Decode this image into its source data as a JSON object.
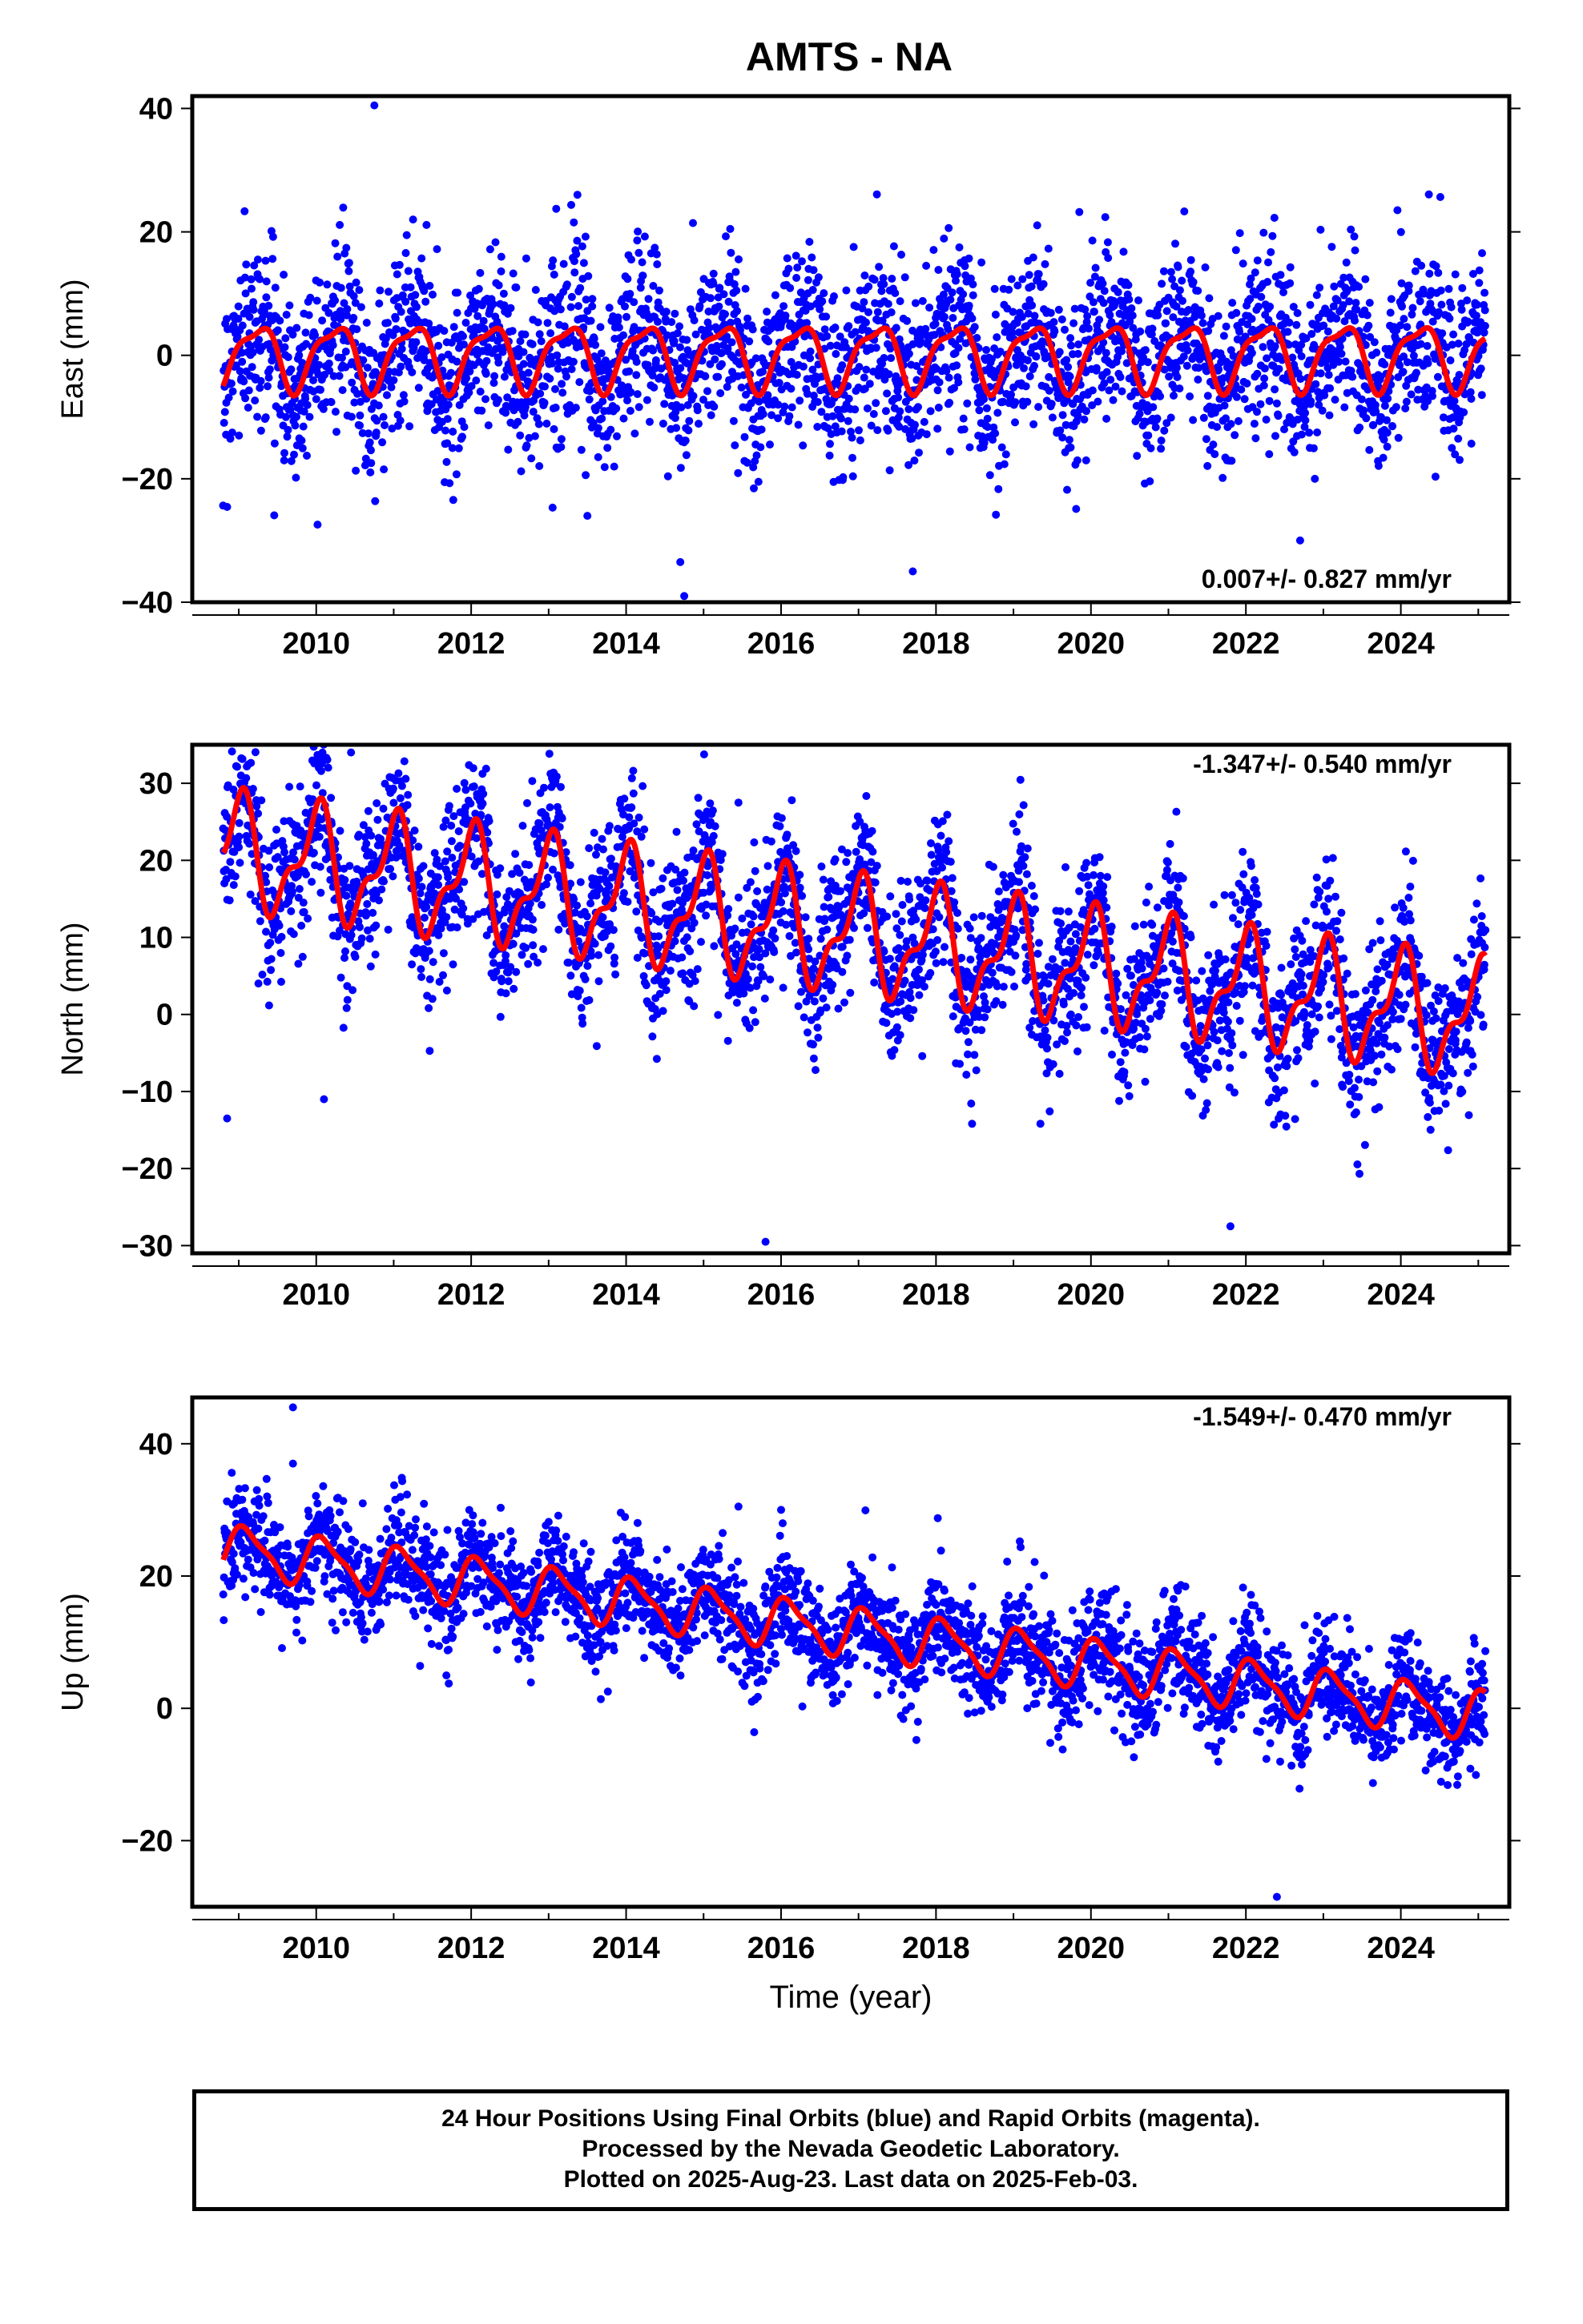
{
  "title": "AMTS - NA",
  "caption": [
    "24 Hour Positions Using Final Orbits (blue) and Rapid Orbits (magenta).",
    "Processed by the Nevada Geodetic Laboratory.",
    "Plotted on 2025-Aug-23. Last data on 2025-Feb-03."
  ],
  "colors": {
    "final_orbits": "#0000ff",
    "model_fit": "#ff0000",
    "frame": "#000000"
  },
  "chart_data": [
    {
      "type": "scatter",
      "ylabel": "East (mm)",
      "xlabel": "",
      "rate_label": "0.007+/- 0.827 mm/yr",
      "xlim": [
        2008.4,
        2025.4
      ],
      "ylim": [
        -40,
        42
      ],
      "xticks": [
        2010,
        2012,
        2014,
        2016,
        2018,
        2020,
        2022,
        2024
      ],
      "yticks": [
        -40,
        -20,
        0,
        20,
        40
      ],
      "grid": false,
      "data_range": [
        2008.8,
        2025.09
      ],
      "trend": {
        "intercept": 0.0,
        "slope": 0.007
      },
      "seasonal": {
        "annual_amp": 5.0,
        "annual_phase": 0.1,
        "semiannual_amp": 1.6,
        "semiannual_phase": 2.3
      },
      "scatter_sd": 7.0,
      "outliers": [
        [
          2010.75,
          40.5
        ],
        [
          2011.25,
          22.0
        ],
        [
          2014.75,
          -39.0
        ],
        [
          2014.7,
          -33.5
        ],
        [
          2022.7,
          -30.0
        ],
        [
          2013.5,
          -26.0
        ],
        [
          2017.7,
          -35.0
        ]
      ],
      "series": [
        {
          "name": "Final Orbits (blue)",
          "kind": "points",
          "color": "#0000ff"
        },
        {
          "name": "Rapid Orbits (magenta)",
          "kind": "points",
          "color": "#ff00ff"
        },
        {
          "name": "model",
          "kind": "line",
          "color": "#ff0000"
        }
      ]
    },
    {
      "type": "scatter",
      "ylabel": "North (mm)",
      "xlabel": "",
      "rate_label": "-1.347+/- 0.540 mm/yr",
      "xlim": [
        2008.4,
        2025.4
      ],
      "ylim": [
        -31,
        35
      ],
      "xticks": [
        2010,
        2012,
        2014,
        2016,
        2018,
        2020,
        2022,
        2024
      ],
      "yticks": [
        -30,
        -20,
        -10,
        0,
        10,
        20,
        30
      ],
      "grid": false,
      "data_range": [
        2008.8,
        2025.09
      ],
      "trend": {
        "intercept": 11.5,
        "slope": -1.347
      },
      "seasonal": {
        "annual_amp": 6.5,
        "annual_phase": 1.6,
        "semiannual_amp": 3.0,
        "semiannual_phase": 0.3
      },
      "scatter_sd": 5.0,
      "outliers": [
        [
          2010.45,
          34.0
        ],
        [
          2015.45,
          27.5
        ],
        [
          2015.8,
          -29.5
        ],
        [
          2008.85,
          -13.5
        ],
        [
          2010.1,
          -11.0
        ],
        [
          2021.8,
          -27.5
        ]
      ],
      "series": [
        {
          "name": "Final Orbits (blue)",
          "kind": "points",
          "color": "#0000ff"
        },
        {
          "name": "Rapid Orbits (magenta)",
          "kind": "points",
          "color": "#ff00ff"
        },
        {
          "name": "model",
          "kind": "line",
          "color": "#ff0000"
        }
      ]
    },
    {
      "type": "scatter",
      "ylabel": "Up (mm)",
      "xlabel": "Time (year)",
      "rate_label": "-1.549+/- 0.470 mm/yr",
      "xlim": [
        2008.4,
        2025.4
      ],
      "ylim": [
        -30,
        47
      ],
      "xticks": [
        2010,
        2012,
        2014,
        2016,
        2018,
        2020,
        2022,
        2024
      ],
      "yticks": [
        -20,
        0,
        20,
        40
      ],
      "grid": false,
      "data_range": [
        2008.8,
        2025.09
      ],
      "trend": {
        "intercept": 13.0,
        "slope": -1.549
      },
      "seasonal": {
        "annual_amp": 3.5,
        "annual_phase": 0.9,
        "semiannual_amp": 1.0,
        "semiannual_phase": 2.0
      },
      "scatter_sd": 4.0,
      "outliers": [
        [
          2009.7,
          45.5
        ],
        [
          2009.7,
          37.0
        ],
        [
          2010.6,
          31.0
        ],
        [
          2015.45,
          30.5
        ],
        [
          2016.0,
          30.0
        ],
        [
          2022.4,
          -28.5
        ]
      ],
      "series": [
        {
          "name": "Final Orbits (blue)",
          "kind": "points",
          "color": "#0000ff"
        },
        {
          "name": "Rapid Orbits (magenta)",
          "kind": "points",
          "color": "#ff00ff"
        },
        {
          "name": "model",
          "kind": "line",
          "color": "#ff0000"
        }
      ]
    }
  ]
}
